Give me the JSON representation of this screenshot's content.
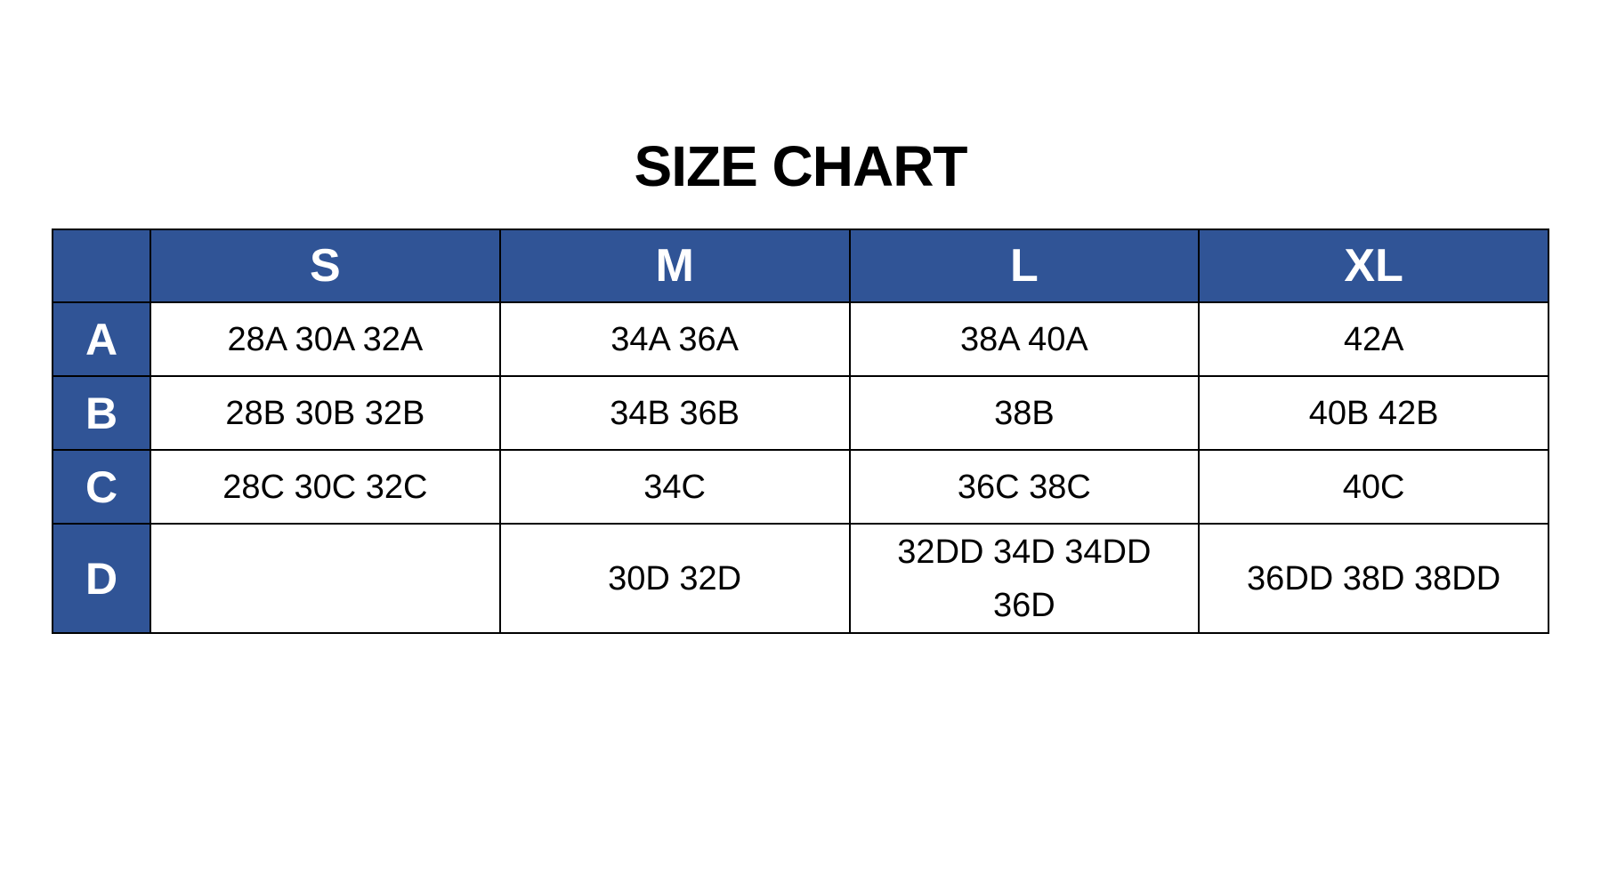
{
  "title": "SIZE CHART",
  "colors": {
    "header_bg": "#305496",
    "header_text": "#ffffff",
    "border": "#000000"
  },
  "columns": [
    "",
    "S",
    "M",
    "L",
    "XL"
  ],
  "rows": [
    {
      "label": "A",
      "cells": [
        "28A 30A 32A",
        "34A 36A",
        "38A 40A",
        "42A"
      ]
    },
    {
      "label": "B",
      "cells": [
        "28B 30B 32B",
        "34B 36B",
        "38B",
        "40B 42B"
      ]
    },
    {
      "label": "C",
      "cells": [
        "28C 30C 32C",
        "34C",
        "36C 38C",
        "40C"
      ]
    },
    {
      "label": "D",
      "cells": [
        "",
        "30D 32D",
        "32DD 34D 34DD 36D",
        "36DD 38D 38DD"
      ]
    }
  ]
}
